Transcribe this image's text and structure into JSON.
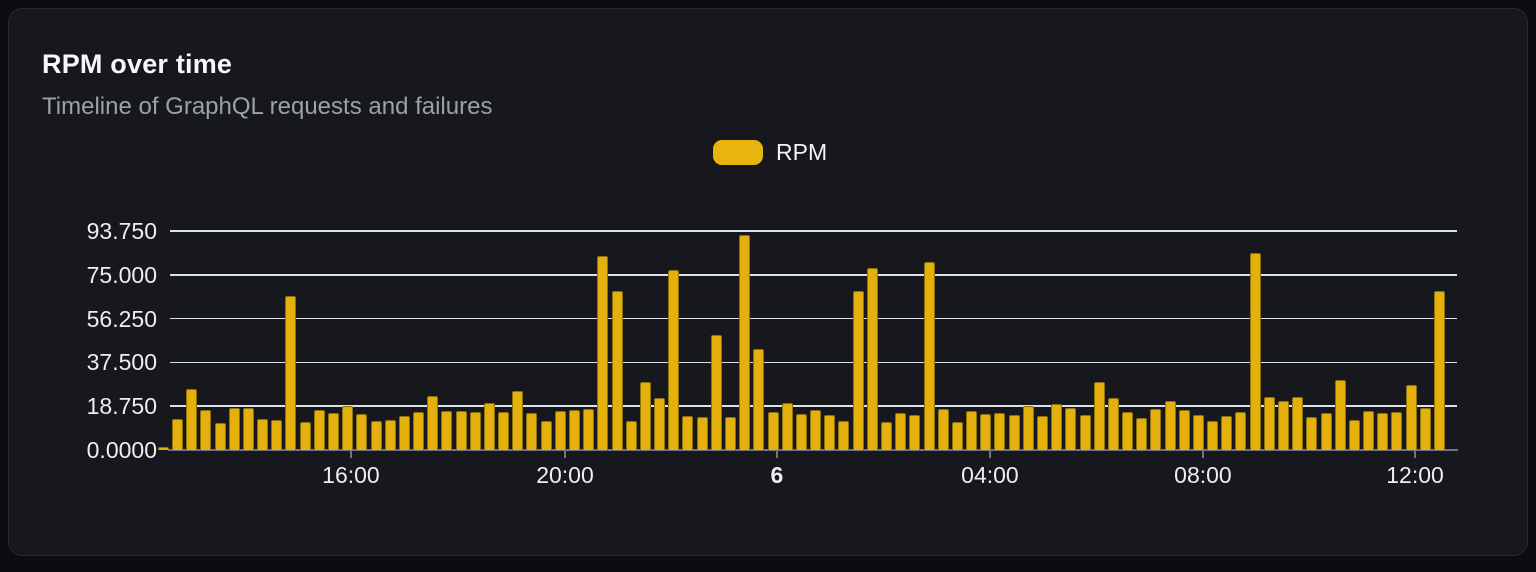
{
  "header": {
    "title": "RPM over time",
    "subtitle": "Timeline of GraphQL requests and failures"
  },
  "legend": {
    "items": [
      {
        "label": "RPM",
        "color": "#E8B40E"
      }
    ]
  },
  "colors": {
    "page_background": "#0C0D10",
    "card_background": "#16181D",
    "card_border": "#26292F",
    "bar": "#E4B00C",
    "grid_line": "#DCE0E8",
    "axis_line": "#71757E",
    "title_text": "#F6F7F8",
    "subtitle_text": "#9BA1A8",
    "tick_label_text": "#ECEEF0"
  },
  "chart_data": {
    "type": "bar",
    "title": "RPM over time",
    "subtitle": "Timeline of GraphQL requests and failures",
    "series_name": "RPM",
    "xlabel": "",
    "ylabel": "",
    "ylim": [
      0,
      93.75
    ],
    "grid": true,
    "legend_position": "top-center",
    "y_ticks": [
      {
        "label": "0.0000",
        "value": 0
      },
      {
        "label": "18.750",
        "value": 18.75
      },
      {
        "label": "37.500",
        "value": 37.5
      },
      {
        "label": "56.250",
        "value": 56.25
      },
      {
        "label": "75.000",
        "value": 75
      },
      {
        "label": "93.750",
        "value": 93.75
      }
    ],
    "x_ticks": [
      {
        "label": "16:00",
        "pos": 0.1406,
        "bold": false
      },
      {
        "label": "20:00",
        "pos": 0.3069,
        "bold": false
      },
      {
        "label": "6",
        "pos": 0.4716,
        "bold": true
      },
      {
        "label": "04:00",
        "pos": 0.6371,
        "bold": false
      },
      {
        "label": "08:00",
        "pos": 0.8026,
        "bold": false
      },
      {
        "label": "12:00",
        "pos": 0.9674,
        "bold": false
      }
    ],
    "values": [
      1.4,
      13.1,
      26.0,
      17.1,
      11.4,
      18.1,
      18.1,
      13.3,
      12.8,
      65.9,
      12.1,
      17.1,
      16.0,
      19.0,
      15.3,
      12.3,
      12.7,
      14.4,
      16.3,
      23.1,
      16.7,
      16.8,
      16.1,
      20.3,
      16.1,
      25.4,
      16.0,
      12.6,
      16.8,
      17.0,
      17.5,
      83.0,
      68.2,
      12.3,
      29.0,
      22.1,
      77.0,
      14.4,
      14.0,
      49.1,
      14.0,
      92.2,
      43.2,
      16.1,
      20.3,
      15.4,
      17.1,
      15.0,
      12.3,
      67.9,
      77.8,
      11.8,
      15.8,
      14.8,
      80.5,
      17.6,
      11.8,
      16.7,
      15.5,
      16.0,
      14.8,
      18.9,
      14.5,
      19.6,
      18.0,
      15.0,
      28.9,
      22.1,
      16.1,
      13.7,
      17.7,
      20.8,
      17.2,
      14.8,
      12.5,
      14.5,
      16.4,
      84.2,
      22.7,
      20.8,
      22.5,
      14.1,
      15.7,
      30.0,
      12.8,
      16.6,
      16.0,
      16.4,
      27.8,
      18.1,
      68.2
    ]
  }
}
